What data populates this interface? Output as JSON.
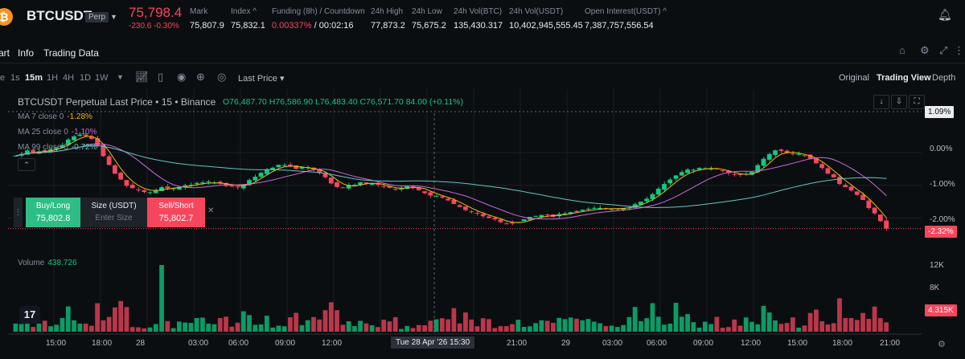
{
  "ticker": {
    "coin_icon": "₿",
    "symbol": "BTCUSDT",
    "badge": "Perp",
    "last_price": "75,798.4",
    "change": "-230.6 -0.30%",
    "stats": [
      {
        "label": "Mark",
        "value": "75,807.9"
      },
      {
        "label": "Index ^",
        "value": "75,832.1"
      },
      {
        "label": "Funding (8h) / Countdown",
        "value": "0.00337%",
        "value2": "/ 00:02:16"
      },
      {
        "label": "24h High",
        "value": "77,873.2"
      },
      {
        "label": "24h Low",
        "value": "75,675.2"
      },
      {
        "label": "24h Vol(BTC)",
        "value": "135,430.317"
      },
      {
        "label": "24h Vol(USDT)",
        "value": "10,402,945,555.45"
      },
      {
        "label": "Open Interest(USDT) ^",
        "value": "7,387,757,556.54"
      }
    ]
  },
  "subtabs": [
    "art",
    "Info",
    "Trading Data"
  ],
  "toolbar": {
    "timeframes": [
      "e",
      "1s",
      "15m",
      "1H",
      "4H",
      "1D",
      "1W"
    ],
    "active_timeframe": "15m",
    "price_type": "Last Price",
    "views": [
      "Original",
      "Trading View",
      "Depth"
    ],
    "active_view": "Trading View"
  },
  "chart": {
    "title": "BTCUSDT Perpetual Last Price • 15 • Binance",
    "ohlc": "O76,487.70 H76,586.90 L76,483.40 C76,571.70 84.00 (+0.11%)",
    "ma": [
      {
        "label": "MA 7 close 0",
        "value": "-1.28%",
        "color": "#f0b90b"
      },
      {
        "label": "MA 25 close 0",
        "value": "-1.10%",
        "color": "#c86bd9"
      },
      {
        "label": "MA 99 close 0",
        "value": "-0.72%",
        "color": "#5fc7c2"
      }
    ],
    "volume_label": "Volume",
    "volume_value": "438.726",
    "price_axis": [
      "0.00%",
      "-1.00%",
      "-2.00%"
    ],
    "top_marker": "1.09%",
    "current_marker": "-2.32%",
    "volume_axis": [
      "12K",
      "8K"
    ],
    "volume_marker": "4.315K",
    "time_axis": [
      "15:00",
      "18:00",
      "28",
      "03:00",
      "06:00",
      "09:00",
      "12:00",
      "21:00",
      "29",
      "03:00",
      "06:00",
      "09:00",
      "12:00",
      "15:00",
      "18:00",
      "21:00"
    ],
    "crosshair_time": "Tue 28 Apr '26   15:30",
    "up_color": "#0ecb81",
    "down_color": "#f6465d"
  },
  "trade_widget": {
    "buy_label": "Buy/Long",
    "buy_price": "75,802.8",
    "size_label": "Size (USDT)",
    "size_placeholder": "Enter Size",
    "sell_label": "Sell/Short",
    "sell_price": "75,802.7"
  },
  "chart_data": {
    "type": "candlestick",
    "title": "BTCUSDT Perpetual Last Price • 15 • Binance",
    "y_unit": "% change",
    "ylim": [
      -2.6,
      1.2
    ],
    "y_ticks": [
      0.0,
      -1.0,
      -2.0
    ],
    "close_pct": [
      -0.1,
      0.05,
      0.0,
      0.1,
      0.2,
      0.5,
      0.55,
      0.4,
      -0.2,
      -0.7,
      -1.0,
      -1.15,
      -1.2,
      -1.05,
      -1.1,
      -1.0,
      -0.95,
      -0.9,
      -0.95,
      -1.0,
      -1.05,
      -0.85,
      -0.6,
      -0.45,
      -0.35,
      -0.5,
      -0.45,
      -0.55,
      -0.85,
      -1.1,
      -1.0,
      -0.9,
      -0.95,
      -1.05,
      -1.15,
      -1.0,
      -1.1,
      -1.3,
      -1.35,
      -1.5,
      -1.7,
      -1.85,
      -1.95,
      -2.05,
      -2.2,
      -2.1,
      -2.0,
      -1.9,
      -1.95,
      -1.85,
      -1.8,
      -1.75,
      -1.7,
      -1.72,
      -1.7,
      -1.65,
      -1.5,
      -1.3,
      -1.0,
      -0.7,
      -0.55,
      -0.5,
      -0.45,
      -0.55,
      -0.65,
      -0.7,
      -0.6,
      -0.2,
      0.05,
      0.0,
      -0.05,
      -0.15,
      -0.4,
      -0.7,
      -1.0,
      -1.2,
      -1.5,
      -1.9,
      -2.32
    ],
    "ma7_pct": -1.28,
    "ma25_pct": -1.1,
    "ma99_pct": -0.72,
    "volume_ylim": [
      0,
      14000
    ],
    "volume_ticks": [
      12000,
      8000
    ],
    "volume_last": 4315
  }
}
